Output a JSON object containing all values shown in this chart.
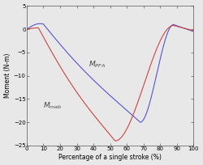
{
  "xlabel": "Percentage of a single stroke (%)",
  "ylabel": "Moment (N-m)",
  "xlim": [
    0,
    100
  ],
  "ylim": [
    -25,
    5
  ],
  "xticks": [
    0,
    10,
    20,
    30,
    40,
    50,
    60,
    70,
    80,
    90,
    100
  ],
  "yticks": [
    5,
    0,
    -5,
    -10,
    -15,
    -20,
    -25
  ],
  "color_pfa": "#5555cc",
  "color_mab": "#cc4444",
  "label_pfa": "$M_{PFA}$",
  "label_mab": "$M_{mab}$",
  "figsize": [
    2.5,
    2.04
  ],
  "dpi": 100,
  "bg_color": "#e8e8e8"
}
